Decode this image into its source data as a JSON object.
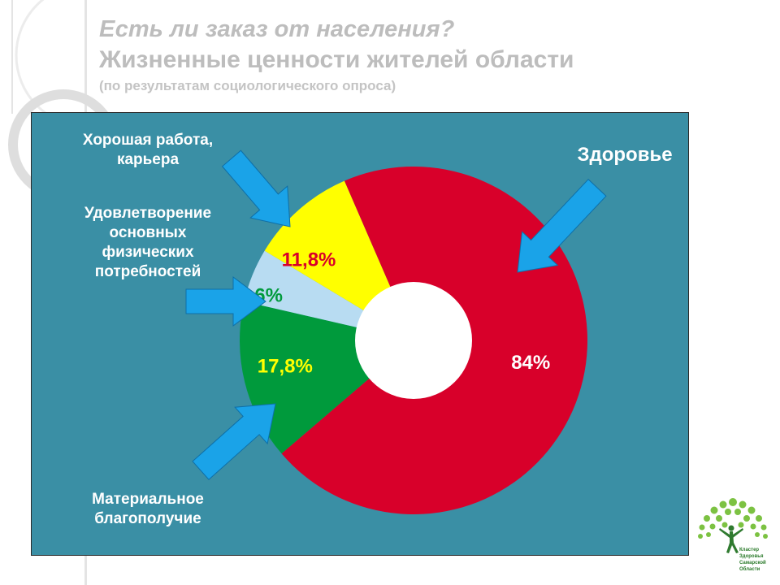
{
  "header": {
    "line1": "Есть ли заказ от населения?",
    "line2": "Жизненные ценности жителей области",
    "line3": "(по результатам социологического опроса)"
  },
  "labels": {
    "career": [
      "Хорошая работа,",
      "карьера"
    ],
    "physical": [
      "Удовлетворение",
      "основных",
      "физических",
      "потребностей"
    ],
    "health": "Здоровье",
    "material": [
      "Материальное",
      "благополучие"
    ]
  },
  "colors": {
    "panel": "#3a8fa5",
    "arrow": "#1aa3e8",
    "health": "#d8002a",
    "career": "#ffff00",
    "physical": "#b8dcf2",
    "material": "#009a3c"
  },
  "chart_data": {
    "type": "pie",
    "style": "donut",
    "slices": [
      {
        "key": "health",
        "name": "Здоровье",
        "value": 84,
        "label": "84%",
        "color": "#d8002a",
        "label_color": "#ffffff"
      },
      {
        "key": "material",
        "name": "Материальное благополучие",
        "value": 17.8,
        "label": "17,8%",
        "color": "#009a3c",
        "label_color": "#ffff00"
      },
      {
        "key": "physical",
        "name": "Удовлетворение основных физических потребностей",
        "value": 6,
        "label": "6%",
        "color": "#b8dcf2",
        "label_color": "#009a3c"
      },
      {
        "key": "career",
        "name": "Хорошая работа, карьера",
        "value": 11.8,
        "label": "11,8%",
        "color": "#ffff00",
        "label_color": "#d8002a"
      }
    ]
  },
  "logo": {
    "icon": "tree-person-icon",
    "text": [
      "Кластер",
      "Здоровья",
      "Самарской",
      "Области"
    ]
  }
}
